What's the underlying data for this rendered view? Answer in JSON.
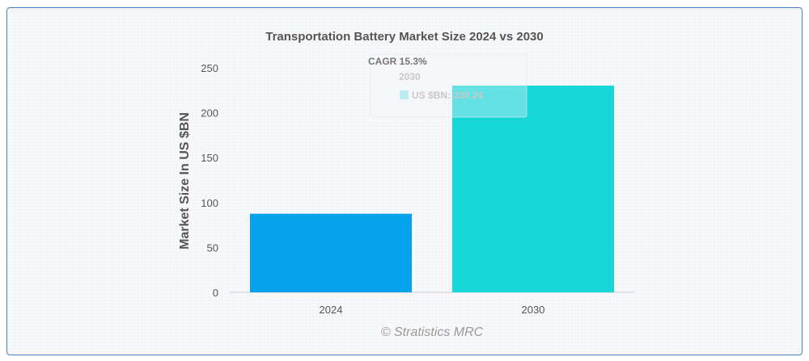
{
  "chart_data": {
    "type": "bar",
    "title": "Transportation Battery Market Size 2024 vs 2030",
    "xlabel": "",
    "ylabel": "Market Size In US $BN",
    "categories": [
      "2024",
      "2030"
    ],
    "values": [
      87.5,
      230.24
    ],
    "colors": [
      "#05a2ec",
      "#17d8d8"
    ],
    "ylim": [
      0,
      250
    ],
    "yticks": [
      0,
      50,
      100,
      150,
      200,
      250
    ],
    "grid": false,
    "legend": "none",
    "tooltip": {
      "header": "CAGR 15.3%",
      "category": "2030",
      "label": "US $BN: 230.24",
      "swatch_color": "#b8ecee"
    },
    "credit": "© Stratistics MRC"
  }
}
